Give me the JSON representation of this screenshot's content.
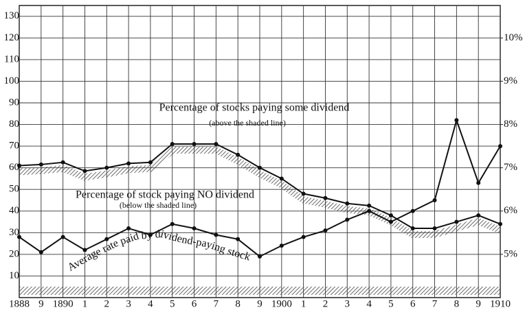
{
  "chart_data": {
    "type": "line",
    "categories": [
      "1888",
      "9",
      "1890",
      "1",
      "2",
      "3",
      "4",
      "5",
      "6",
      "7",
      "8",
      "9",
      "1900",
      "1",
      "2",
      "3",
      "4",
      "5",
      "6",
      "7",
      "8",
      "9",
      "1910"
    ],
    "series": [
      {
        "name": "Percentage of stocks paying some dividend",
        "color": "#111111",
        "values": [
          61,
          61.5,
          62.5,
          58.5,
          60,
          62,
          62.5,
          71,
          71,
          71,
          66,
          60,
          55,
          48,
          46,
          43.5,
          42.5,
          38,
          32,
          32,
          35,
          38,
          34
        ]
      },
      {
        "name": "Average rate paid by dividend-paying stock",
        "color": "#111111",
        "axis": "y2",
        "values": [
          5.4,
          5.05,
          5.4,
          5.1,
          5.35,
          5.6,
          5.45,
          5.7,
          5.6,
          5.45,
          5.35,
          4.95,
          5.2,
          5.4,
          5.55,
          5.8,
          6.0,
          5.75,
          6.0,
          6.25,
          8.1,
          6.65,
          7.5
        ]
      }
    ],
    "annotations": [
      "Percentage of stocks paying some dividend",
      "(above the shaded line)",
      "Percentage of stock paying NO dividend",
      "(below the shaded line)",
      "Average rate paid by dividend-paying stock"
    ],
    "ylim": [
      0,
      135
    ],
    "yticks": [
      10,
      20,
      30,
      40,
      50,
      60,
      70,
      80,
      90,
      100,
      110,
      120,
      130
    ],
    "y2lim": [
      4,
      10.75
    ],
    "y2ticks": [
      {
        "value": 5,
        "label": "5%"
      },
      {
        "value": 6,
        "label": "6%"
      },
      {
        "value": 7,
        "label": "7%"
      },
      {
        "value": 8,
        "label": "8%"
      },
      {
        "value": 9,
        "label": "9%"
      },
      {
        "value": 10,
        "label": "10%"
      }
    ],
    "grid": true
  }
}
